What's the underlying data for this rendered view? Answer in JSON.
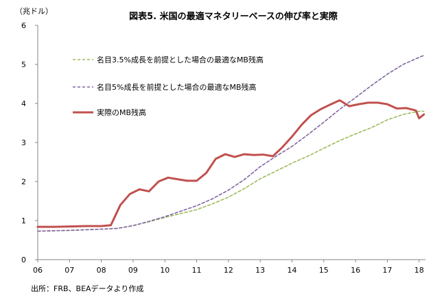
{
  "chart_data": {
    "type": "line",
    "title": "図表5. 米国の最適マネタリーベースの伸び率と実際",
    "unit_label": "（兆ドル）",
    "source": "出所：FRB、BEAデータより作成",
    "xlabel": "",
    "ylabel": "兆ドル",
    "ylim": [
      0,
      6
    ],
    "xlim": [
      2006,
      2018.2
    ],
    "y_ticks": [
      "0",
      "1",
      "2",
      "3",
      "4",
      "5",
      "6"
    ],
    "x_ticks": [
      "06",
      "07",
      "08",
      "09",
      "10",
      "11",
      "12",
      "13",
      "14",
      "15",
      "16",
      "17",
      "18"
    ],
    "legend_position": "top-left",
    "series": [
      {
        "name": "名目3.5%成長を前提とした場合の最適なMB残高",
        "color": "#9bbb59",
        "style": "dashed",
        "points": [
          [
            2006.0,
            0.73
          ],
          [
            2007.0,
            0.75
          ],
          [
            2008.0,
            0.78
          ],
          [
            2008.5,
            0.8
          ],
          [
            2009.0,
            0.87
          ],
          [
            2009.5,
            0.97
          ],
          [
            2010.0,
            1.08
          ],
          [
            2010.5,
            1.18
          ],
          [
            2011.0,
            1.28
          ],
          [
            2011.5,
            1.43
          ],
          [
            2012.0,
            1.6
          ],
          [
            2012.5,
            1.82
          ],
          [
            2013.0,
            2.07
          ],
          [
            2013.5,
            2.27
          ],
          [
            2014.0,
            2.47
          ],
          [
            2014.5,
            2.65
          ],
          [
            2015.0,
            2.85
          ],
          [
            2015.5,
            3.05
          ],
          [
            2016.0,
            3.22
          ],
          [
            2016.5,
            3.38
          ],
          [
            2017.0,
            3.58
          ],
          [
            2017.5,
            3.72
          ],
          [
            2018.0,
            3.8
          ],
          [
            2018.15,
            3.8
          ]
        ]
      },
      {
        "name": "名目5%成長を前提とした場合の最適なMB残高",
        "color": "#8064a2",
        "style": "dashed",
        "points": [
          [
            2006.0,
            0.73
          ],
          [
            2007.0,
            0.75
          ],
          [
            2008.0,
            0.78
          ],
          [
            2008.5,
            0.8
          ],
          [
            2009.0,
            0.87
          ],
          [
            2009.5,
            0.98
          ],
          [
            2010.0,
            1.1
          ],
          [
            2010.5,
            1.24
          ],
          [
            2011.0,
            1.38
          ],
          [
            2011.5,
            1.56
          ],
          [
            2012.0,
            1.78
          ],
          [
            2012.5,
            2.05
          ],
          [
            2013.0,
            2.38
          ],
          [
            2013.5,
            2.65
          ],
          [
            2014.0,
            2.9
          ],
          [
            2014.5,
            3.2
          ],
          [
            2015.0,
            3.52
          ],
          [
            2015.5,
            3.85
          ],
          [
            2016.0,
            4.15
          ],
          [
            2016.5,
            4.46
          ],
          [
            2017.0,
            4.75
          ],
          [
            2017.5,
            5.0
          ],
          [
            2018.0,
            5.18
          ],
          [
            2018.15,
            5.23
          ]
        ]
      },
      {
        "name": "実際のMB残高",
        "color": "#c0504d",
        "style": "solid",
        "points": [
          [
            2006.0,
            0.84
          ],
          [
            2006.5,
            0.84
          ],
          [
            2007.0,
            0.85
          ],
          [
            2007.5,
            0.86
          ],
          [
            2008.0,
            0.86
          ],
          [
            2008.3,
            0.88
          ],
          [
            2008.6,
            1.4
          ],
          [
            2008.9,
            1.68
          ],
          [
            2009.2,
            1.8
          ],
          [
            2009.5,
            1.75
          ],
          [
            2009.8,
            2.0
          ],
          [
            2010.1,
            2.1
          ],
          [
            2010.4,
            2.06
          ],
          [
            2010.7,
            2.02
          ],
          [
            2011.0,
            2.02
          ],
          [
            2011.3,
            2.22
          ],
          [
            2011.6,
            2.58
          ],
          [
            2011.9,
            2.7
          ],
          [
            2012.2,
            2.63
          ],
          [
            2012.5,
            2.7
          ],
          [
            2012.8,
            2.68
          ],
          [
            2013.1,
            2.69
          ],
          [
            2013.4,
            2.65
          ],
          [
            2013.7,
            2.88
          ],
          [
            2014.0,
            3.15
          ],
          [
            2014.3,
            3.45
          ],
          [
            2014.6,
            3.7
          ],
          [
            2014.9,
            3.85
          ],
          [
            2015.2,
            3.97
          ],
          [
            2015.5,
            4.08
          ],
          [
            2015.8,
            3.93
          ],
          [
            2016.1,
            3.98
          ],
          [
            2016.4,
            4.02
          ],
          [
            2016.7,
            4.02
          ],
          [
            2017.0,
            3.98
          ],
          [
            2017.3,
            3.87
          ],
          [
            2017.6,
            3.88
          ],
          [
            2017.9,
            3.82
          ],
          [
            2018.0,
            3.62
          ],
          [
            2018.15,
            3.72
          ]
        ]
      }
    ]
  }
}
